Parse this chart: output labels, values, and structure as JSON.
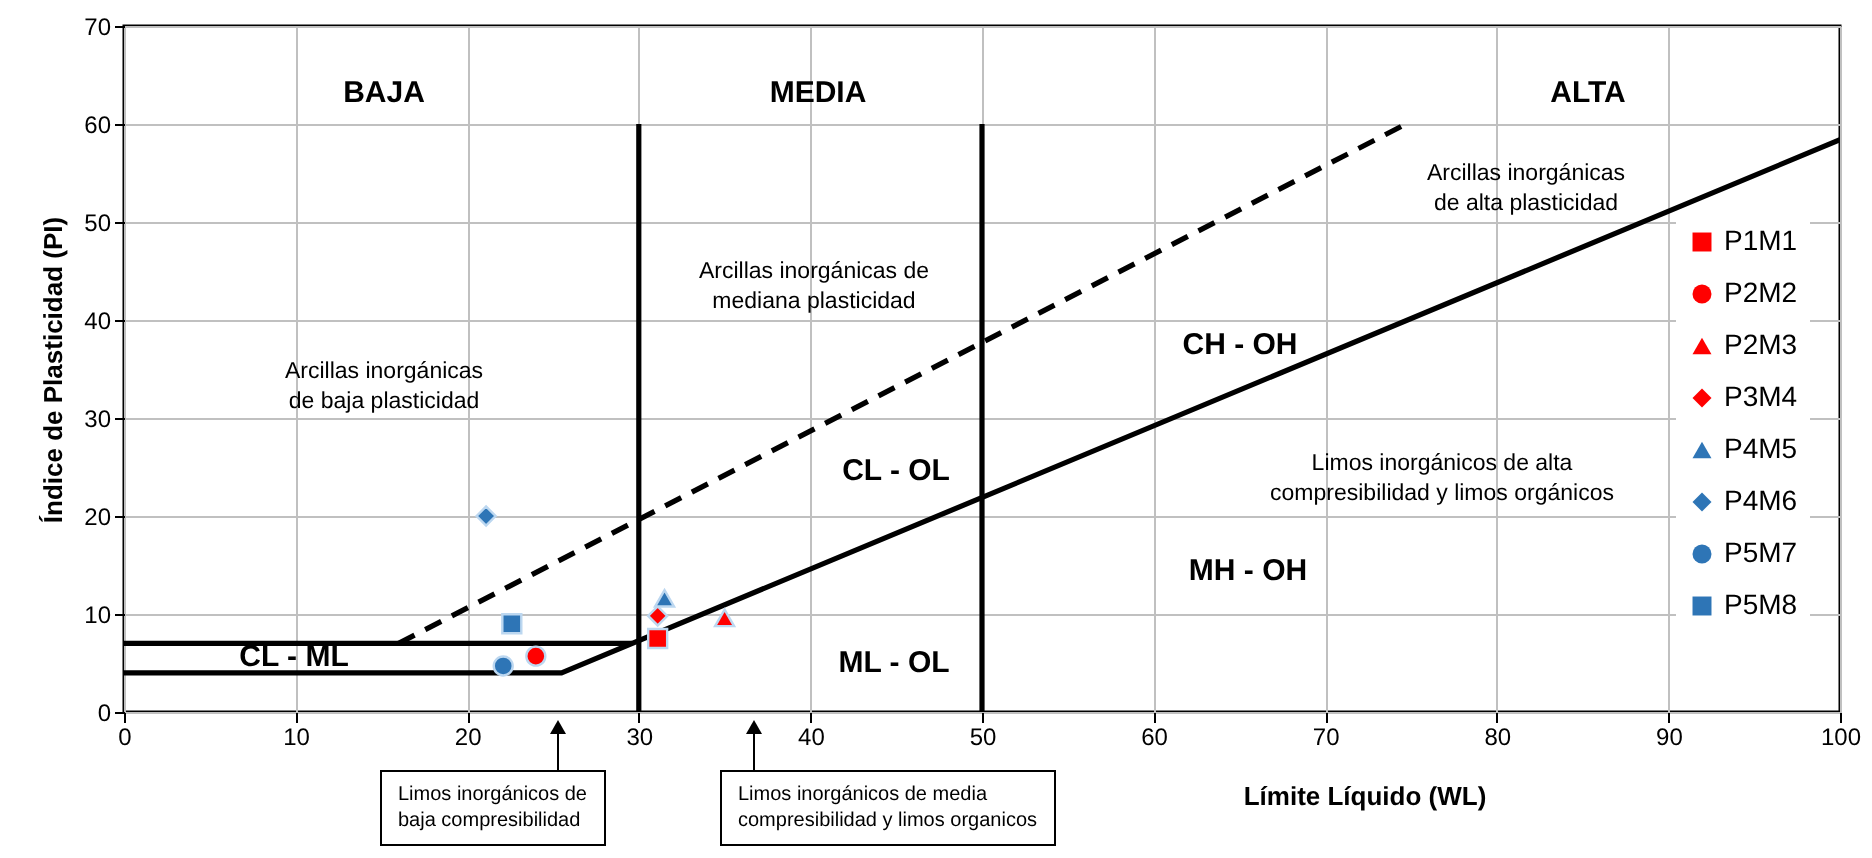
{
  "chart_data": {
    "type": "scatter",
    "xlabel": "Límite Líquido (WL)",
    "ylabel": "Índice de Plasticidad (PI)",
    "xlim": [
      0,
      100
    ],
    "ylim": [
      0,
      70
    ],
    "xticks": [
      0,
      10,
      20,
      30,
      40,
      50,
      60,
      70,
      80,
      90,
      100
    ],
    "yticks": [
      0,
      10,
      20,
      30,
      40,
      50,
      60,
      70
    ],
    "grid": true,
    "legend": "right",
    "series": [
      {
        "name": "P1M1",
        "color": "#ff0000",
        "marker": "square",
        "x": [
          31.1
        ],
        "values": [
          7.5
        ]
      },
      {
        "name": "P2M2",
        "color": "#ff0000",
        "marker": "circle",
        "x": [
          24
        ],
        "values": [
          5.7
        ]
      },
      {
        "name": "P2M3",
        "color": "#ff0000",
        "marker": "triangle",
        "x": [
          35
        ],
        "values": [
          9.6
        ]
      },
      {
        "name": "P3M4",
        "color": "#ff0000",
        "marker": "diamond",
        "x": [
          31.1
        ],
        "values": [
          9.8
        ]
      },
      {
        "name": "P4M5",
        "color": "#2e75b6",
        "marker": "triangle",
        "x": [
          31.5
        ],
        "values": [
          11.6
        ]
      },
      {
        "name": "P4M6",
        "color": "#2e75b6",
        "marker": "diamond",
        "x": [
          21.1
        ],
        "values": [
          20
        ]
      },
      {
        "name": "P5M7",
        "color": "#2e75b6",
        "marker": "circle",
        "x": [
          22.1
        ],
        "values": [
          4.7
        ]
      },
      {
        "name": "P5M8",
        "color": "#2e75b6",
        "marker": "square",
        "x": [
          22.6
        ],
        "values": [
          9
        ]
      },
      {
        "type": "line",
        "color": "#000000",
        "line_style": "dashed",
        "x": [
          16,
          74.7
        ],
        "values": [
          7,
          60
        ]
      },
      {
        "type": "line",
        "color": "#000000",
        "line_style": "solid",
        "x": [
          0,
          25.5,
          100
        ],
        "values": [
          4,
          4,
          58.4
        ]
      },
      {
        "type": "line",
        "color": "#000000",
        "line_style": "solid",
        "x": [
          0,
          29.6
        ],
        "values": [
          7,
          7
        ]
      },
      {
        "type": "line",
        "color": "#000000",
        "line_style": "solid",
        "x": [
          30,
          30
        ],
        "values": [
          0,
          60
        ]
      },
      {
        "type": "line",
        "color": "#000000",
        "line_style": "solid",
        "x": [
          50,
          50
        ],
        "values": [
          0,
          60
        ]
      }
    ],
    "annotations": [
      "BAJA",
      "MEDIA",
      "ALTA",
      "Arcillas inorgánicas\nde alta plasticidad",
      "Arcillas inorgánicas de\nmediana plasticidad",
      "Arcillas inorgánicas\nde baja plasticidad",
      "CH - OH",
      "CL - OL",
      "Limos inorgánicos de alta\ncompresibilidad y limos orgánicos",
      "MH - OH",
      "ML - OL",
      "CL - ML",
      "Limos inorgánicos de\nbaja compresibilidad",
      "Limos inorgánicos de media\ncompresibilidad y limos organicos"
    ]
  }
}
